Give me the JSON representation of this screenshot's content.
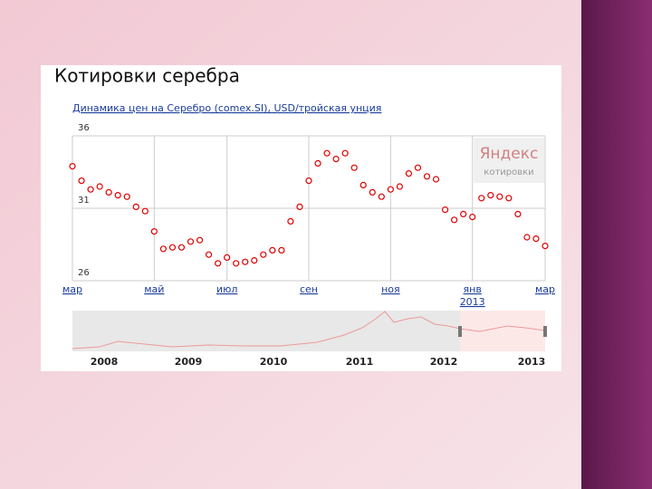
{
  "title": "Котировки серебра",
  "logo": {
    "name": "Яндекс",
    "sub": "котировки"
  },
  "chart_data": {
    "type": "line",
    "title": "Динамика цен на Серебро (comex.SI), USD/тройская унция",
    "categories": [
      "мар",
      null,
      null,
      null,
      null,
      null,
      null,
      null,
      null,
      "май",
      null,
      null,
      null,
      null,
      null,
      null,
      null,
      "июл",
      null,
      null,
      null,
      null,
      null,
      null,
      null,
      null,
      "сен",
      null,
      null,
      null,
      null,
      null,
      null,
      null,
      null,
      "ноя",
      null,
      null,
      null,
      null,
      null,
      null,
      null,
      null,
      "янв",
      null,
      null,
      null,
      null,
      null,
      null,
      null,
      "мар"
    ],
    "year_label": "2013",
    "series": [
      {
        "name": "comex.SI",
        "color": "#e00000",
        "values": [
          33.9,
          32.9,
          32.3,
          32.5,
          32.1,
          31.9,
          31.8,
          31.1,
          30.8,
          29.4,
          28.2,
          28.3,
          28.3,
          28.7,
          28.8,
          27.8,
          27.2,
          27.6,
          27.2,
          27.3,
          27.4,
          27.8,
          28.1,
          28.1,
          30.1,
          31.1,
          32.9,
          34.1,
          34.8,
          34.4,
          34.8,
          33.8,
          32.6,
          32.1,
          31.8,
          32.3,
          32.5,
          33.4,
          33.8,
          33.2,
          33.0,
          30.9,
          30.2,
          30.6,
          30.4,
          31.7,
          31.9,
          31.8,
          31.7,
          30.6,
          29.0,
          28.9,
          28.4
        ]
      }
    ],
    "ylim": [
      26,
      36
    ],
    "yticks": [
      26,
      31,
      36
    ],
    "grid": true,
    "navigator_years": [
      "2008",
      "2009",
      "2010",
      "2011",
      "2012",
      "2013"
    ]
  }
}
